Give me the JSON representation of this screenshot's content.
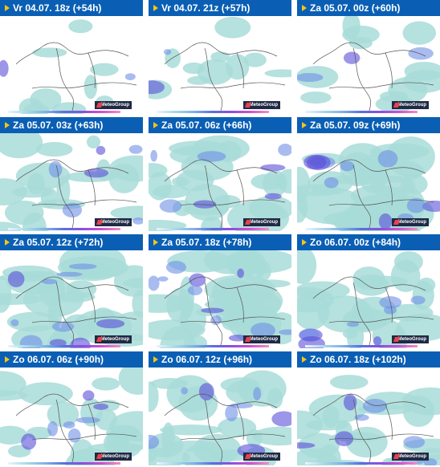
{
  "panels": [
    {
      "label": "Vr 04.07. 18z (+54h)",
      "intensity": 0.12
    },
    {
      "label": "Vr 04.07. 21z (+57h)",
      "intensity": 0.15
    },
    {
      "label": "Za 05.07. 00z (+60h)",
      "intensity": 0.18
    },
    {
      "label": "Za 05.07. 03z (+63h)",
      "intensity": 0.45
    },
    {
      "label": "Za 05.07. 06z (+66h)",
      "intensity": 0.55
    },
    {
      "label": "Za 05.07. 09z (+69h)",
      "intensity": 0.7
    },
    {
      "label": "Za 05.07. 12z (+72h)",
      "intensity": 0.72
    },
    {
      "label": "Za 05.07. 18z (+78h)",
      "intensity": 0.8
    },
    {
      "label": "Zo 06.07. 00z (+84h)",
      "intensity": 0.55
    },
    {
      "label": "Zo 06.07. 06z (+90h)",
      "intensity": 0.5
    },
    {
      "label": "Zo 06.07. 12z (+96h)",
      "intensity": 0.55
    },
    {
      "label": "Zo 06.07. 18z (+102h)",
      "intensity": 0.55
    }
  ],
  "badge": {
    "text": "MeteoGroup",
    "icon": "meteogroup-logo-icon"
  },
  "colors": {
    "header": "#0a5fb4",
    "triangle": "#f5c518",
    "precip_light": "#a8dcd8",
    "precip_mid": "#6f8fe6",
    "precip_heavy": "#5a4fd8"
  }
}
